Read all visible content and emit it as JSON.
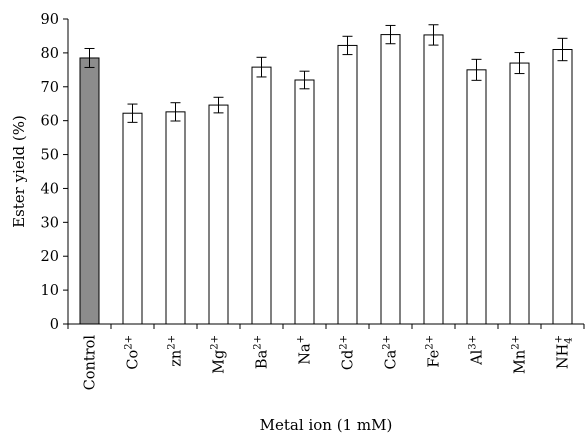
{
  "chart_data": {
    "type": "bar",
    "xlabel": "Metal ion (1 mM)",
    "ylabel": "Ester yield (%)",
    "ylim": [
      0,
      90
    ],
    "yticks": [
      0,
      10,
      20,
      30,
      40,
      50,
      60,
      70,
      80,
      90
    ],
    "grid": false,
    "categories": [
      {
        "base": "Control",
        "sup": "",
        "sub": ""
      },
      {
        "base": "Co",
        "sup": "2+",
        "sub": ""
      },
      {
        "base": "zn",
        "sup": "2+",
        "sub": ""
      },
      {
        "base": "Mg",
        "sup": "2+",
        "sub": ""
      },
      {
        "base": "Ba",
        "sup": "2+",
        "sub": ""
      },
      {
        "base": "Na",
        "sup": "+",
        "sub": ""
      },
      {
        "base": "Cd",
        "sup": "2+",
        "sub": ""
      },
      {
        "base": "Ca",
        "sup": "2+",
        "sub": ""
      },
      {
        "base": "Fe",
        "sup": "2+",
        "sub": ""
      },
      {
        "base": "Al",
        "sup": "3+",
        "sub": ""
      },
      {
        "base": "Mn",
        "sup": "2+",
        "sub": ""
      },
      {
        "base": "NH",
        "sup": "+",
        "sub": "4"
      }
    ],
    "values": [
      78.5,
      62.2,
      62.6,
      64.6,
      75.8,
      72,
      82.2,
      85.4,
      85.3,
      75,
      77,
      81
    ],
    "errors": [
      2.8,
      2.7,
      2.7,
      2.3,
      2.9,
      2.6,
      2.7,
      2.7,
      3,
      3.1,
      3.1,
      3.3
    ],
    "colors": {
      "control": "#8c8c8c",
      "default": "#ffffff",
      "stroke": "#000000"
    }
  }
}
